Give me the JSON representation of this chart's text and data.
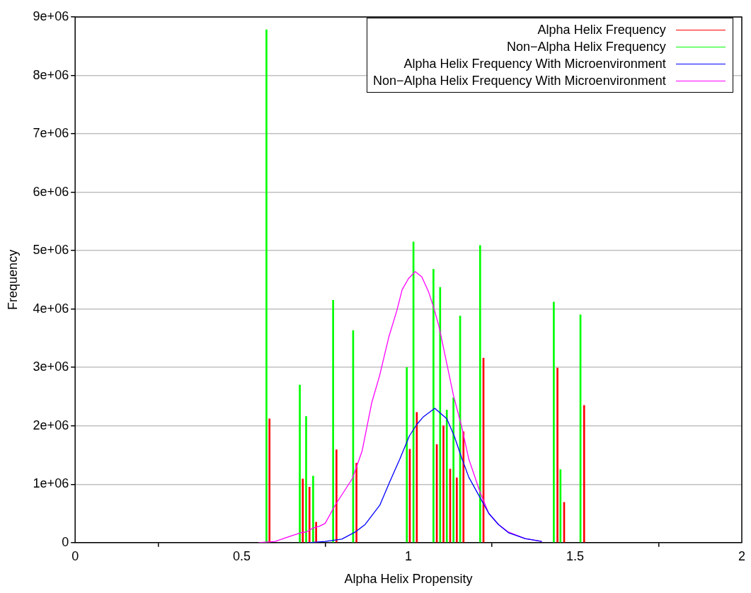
{
  "chart_data": {
    "type": "line",
    "xlabel": "Alpha Helix Propensity",
    "ylabel": "Frequency",
    "xlim": [
      0,
      2
    ],
    "xticks": [
      0,
      0.5,
      1,
      1.5,
      2
    ],
    "ylim": [
      0,
      9000000
    ],
    "yticks": [
      0,
      {
        "value": 1000000,
        "label": "1e+06"
      },
      {
        "value": 2000000,
        "label": "2e+06"
      },
      {
        "value": 3000000,
        "label": "3e+06"
      },
      {
        "value": 4000000,
        "label": "4e+06"
      },
      {
        "value": 5000000,
        "label": "5e+06"
      },
      {
        "value": 6000000,
        "label": "6e+06"
      },
      {
        "value": 7000000,
        "label": "7e+06"
      },
      {
        "value": 8000000,
        "label": "8e+06"
      },
      {
        "value": 9000000,
        "label": "9e+06"
      }
    ],
    "grid": "y",
    "legend": "top right",
    "marker": "none",
    "line_style": "solid",
    "series": [
      {
        "name": "Alpha Helix Frequency",
        "type": "bar",
        "color": "#ff0000",
        "x": [
          0.583,
          0.683,
          0.703,
          0.723,
          0.784,
          0.844,
          1.004,
          1.025,
          1.085,
          1.105,
          1.125,
          1.145,
          1.165,
          1.225,
          1.447,
          1.467,
          1.527
        ],
        "values": [
          2120000,
          1090000,
          950000,
          350000,
          1590000,
          1360000,
          1600000,
          2230000,
          1680000,
          2000000,
          1260000,
          1110000,
          1900000,
          3160000,
          2990000,
          690000,
          2350000
        ]
      },
      {
        "name": "Non−Alpha Helix Frequency",
        "type": "bar",
        "color": "#00ff00",
        "x": [
          0.574,
          0.674,
          0.693,
          0.714,
          0.774,
          0.834,
          0.995,
          1.015,
          1.075,
          1.095,
          1.115,
          1.135,
          1.155,
          1.215,
          1.436,
          1.456,
          1.516
        ],
        "values": [
          8780000,
          2700000,
          2160000,
          1140000,
          4150000,
          3630000,
          3000000,
          5150000,
          4680000,
          4370000,
          2270000,
          2480000,
          3880000,
          5090000,
          4120000,
          1250000,
          3900000
        ]
      },
      {
        "name": "Alpha Helix Frequency With Microenvironment",
        "color": "#0000ff",
        "x": [
          0.7,
          0.75,
          0.8,
          0.84,
          0.87,
          0.914,
          0.943,
          0.974,
          1.003,
          1.026,
          1.044,
          1.079,
          1.115,
          1.137,
          1.159,
          1.181,
          1.21,
          1.241,
          1.27,
          1.3,
          1.35,
          1.4
        ],
        "values": [
          0,
          20000,
          60000,
          180000,
          310000,
          640000,
          1030000,
          1430000,
          1830000,
          2030000,
          2150000,
          2300000,
          2120000,
          1830000,
          1460000,
          1120000,
          820000,
          500000,
          310000,
          170000,
          70000,
          20000
        ]
      },
      {
        "name": "Non−Alpha Helix Frequency With Microenvironment",
        "color": "#ff00ff",
        "x": [
          0.55,
          0.6,
          0.64,
          0.677,
          0.693,
          0.714,
          0.733,
          0.75,
          0.78,
          0.832,
          0.861,
          0.89,
          0.913,
          0.941,
          0.965,
          0.981,
          1.0,
          1.02,
          1.04,
          1.06,
          1.077,
          1.092,
          1.135,
          1.159,
          1.181,
          1.215,
          1.241,
          1.27,
          1.3,
          1.35,
          1.4
        ],
        "values": [
          0,
          20000,
          100000,
          170000,
          180000,
          250000,
          280000,
          330000,
          640000,
          1100000,
          1570000,
          2400000,
          2850000,
          3520000,
          3970000,
          4330000,
          4520000,
          4640000,
          4550000,
          4300000,
          4000000,
          3690000,
          2520000,
          2000000,
          1430000,
          860000,
          500000,
          310000,
          180000,
          70000,
          20000
        ]
      }
    ]
  }
}
